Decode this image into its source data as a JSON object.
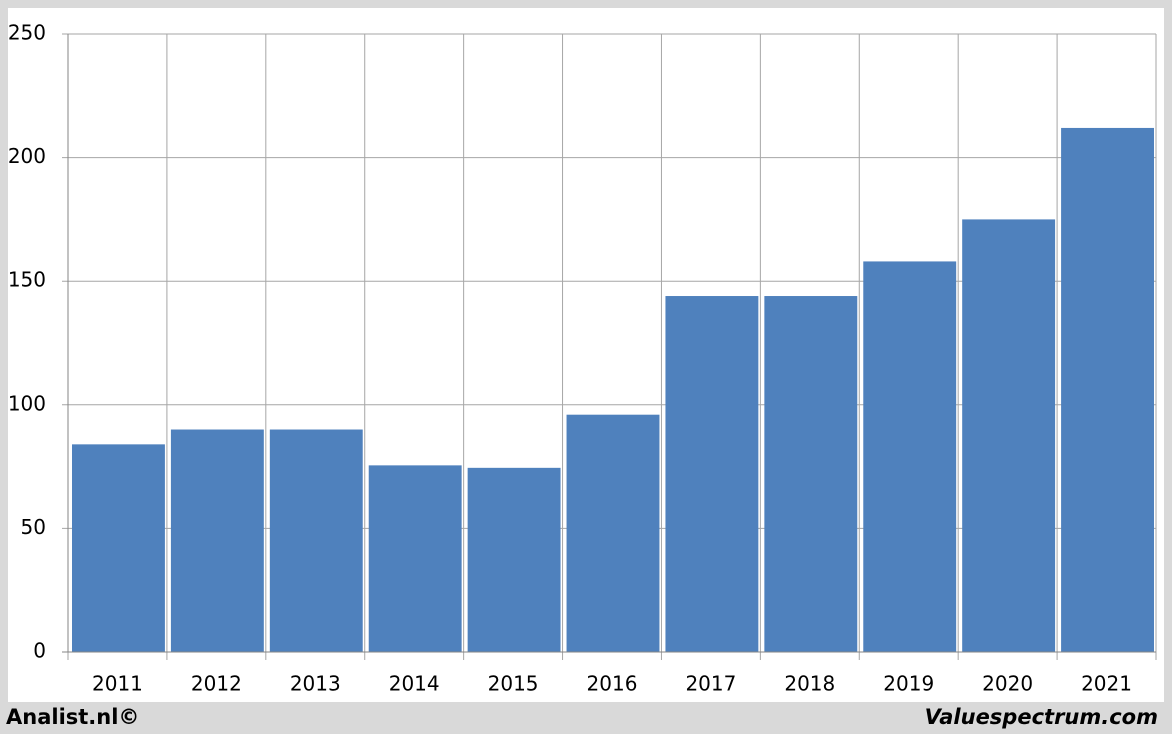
{
  "chart_data": {
    "type": "bar",
    "categories": [
      "2011",
      "2012",
      "2013",
      "2014",
      "2015",
      "2016",
      "2017",
      "2018",
      "2019",
      "2020",
      "2021"
    ],
    "values": [
      84,
      90,
      90,
      75.5,
      74.5,
      96,
      144,
      144,
      158,
      175,
      212
    ],
    "color": "#4f81bd",
    "ylim": [
      0,
      250
    ],
    "yticks": [
      0,
      50,
      100,
      150,
      200,
      250
    ],
    "grid": true,
    "annotations": [
      "Analist.nl©",
      "Valuespectrum.com"
    ]
  }
}
